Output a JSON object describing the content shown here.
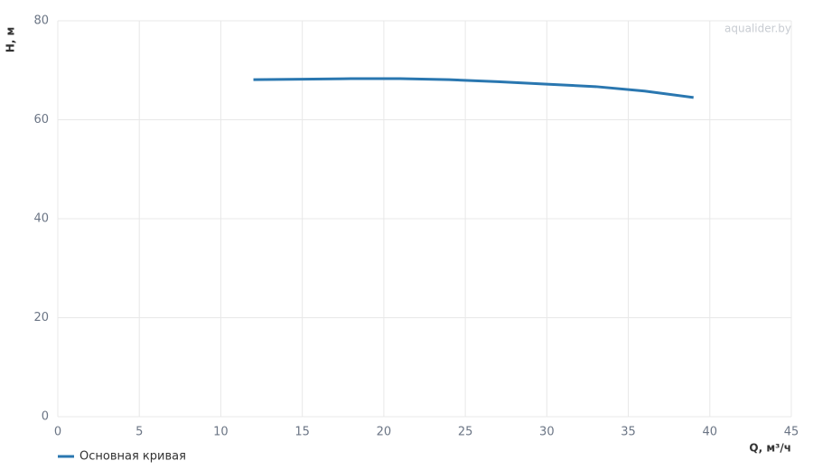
{
  "chart_data": {
    "type": "line",
    "watermark": "aqualider.by",
    "x_label": "Q, м³/ч",
    "y_label": "H, м",
    "series": [
      {
        "name": "Основная кривая",
        "color": "#2a77b0",
        "x": [
          12,
          15,
          18,
          21,
          24,
          27,
          30,
          33,
          36,
          39
        ],
        "values": [
          68.1,
          68.2,
          68.3,
          68.3,
          68.1,
          67.7,
          67.2,
          66.7,
          65.8,
          64.5
        ]
      }
    ],
    "xlim": [
      0,
      45
    ],
    "xticks": [
      0,
      5,
      10,
      15,
      20,
      25,
      30,
      35,
      40,
      45
    ],
    "ylim": [
      0,
      80
    ],
    "yticks": [
      0,
      20,
      40,
      60,
      80
    ],
    "grid": true,
    "legend": "bottom-left"
  }
}
